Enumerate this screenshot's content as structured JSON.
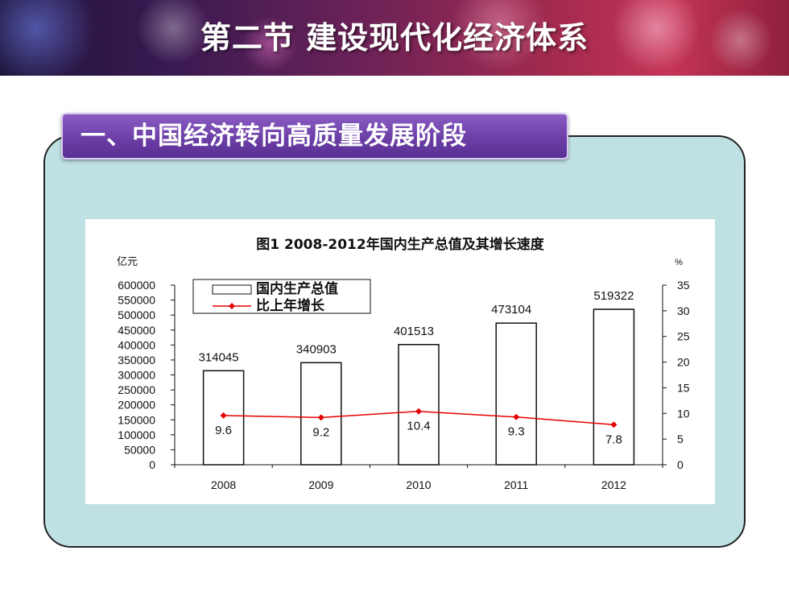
{
  "slide": {
    "title": "第二节 建设现代化经济体系",
    "section_heading": "一、中国经济转向高质量发展阶段"
  },
  "colors": {
    "banner_start": "#1c1236",
    "banner_end": "#c53456",
    "panel": "#bfe1e3",
    "tag": "#6b3fa6",
    "line": "#e60000"
  },
  "chart_data": {
    "type": "bar",
    "title": "图1 2008-2012年国内生产总值及其增长速度",
    "categories": [
      "2008",
      "2009",
      "2010",
      "2011",
      "2012"
    ],
    "ylabel": "亿元",
    "y2label": "%",
    "ylim": [
      0,
      600000
    ],
    "y2lim": [
      0,
      35
    ],
    "yticks": [
      0,
      50000,
      100000,
      150000,
      200000,
      250000,
      300000,
      350000,
      400000,
      450000,
      500000,
      550000,
      600000
    ],
    "y2ticks": [
      0,
      5,
      10,
      15,
      20,
      25,
      30,
      35
    ],
    "series": [
      {
        "name": "国内生产总值",
        "type": "bar",
        "axis": "left",
        "values": [
          314045,
          340903,
          401513,
          473104,
          519322
        ]
      },
      {
        "name": "比上年增长",
        "type": "line",
        "axis": "right",
        "values": [
          9.6,
          9.2,
          10.4,
          9.3,
          7.8
        ]
      }
    ],
    "legend_position": "top-left",
    "grid": false
  }
}
